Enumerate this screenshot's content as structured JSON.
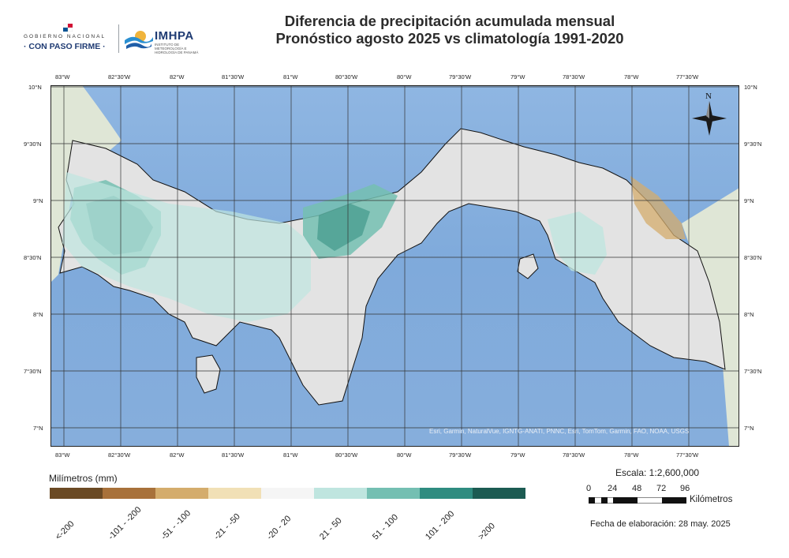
{
  "header": {
    "gov_small": "GOBIERNO NACIONAL",
    "gov_big": "· CON PASO FIRME ·",
    "imhpa_name": "IMHPA",
    "imhpa_sub": "INSTITUTO DE METEOROLOGÍA E HIDROLOGÍA DE PANAMÁ",
    "title_line1": "Diferencia de precipitación acumulada mensual",
    "title_line2": "Pronóstico agosto 2025 vs climatología 1991-2020"
  },
  "map": {
    "lon_ticks": [
      "83°W",
      "82°30'W",
      "82°W",
      "81°30'W",
      "81°W",
      "80°30'W",
      "80°W",
      "79°30'W",
      "79°W",
      "78°30'W",
      "78°W",
      "77°30'W"
    ],
    "lat_ticks": [
      "10°N",
      "9°30'N",
      "9°N",
      "8°30'N",
      "8°N",
      "7°30'N",
      "7°N"
    ],
    "north_label": "N",
    "attribution": "Esri, Garmin, NaturalVue, IGNTG-ANATI, PNNC, Esri, TomTom, Garmin, FAO, NOAA, USGS",
    "colors": {
      "sea": "#86aedc",
      "land": "#e3e3e3",
      "border": "#111111"
    }
  },
  "legend": {
    "title": "Milímetros (mm)",
    "items": [
      {
        "label": "<-200",
        "color": "#6b4a24"
      },
      {
        "label": "-101 - -200",
        "color": "#a8713a"
      },
      {
        "label": "-51 - -100",
        "color": "#d4ac6c"
      },
      {
        "label": "-21 - -50",
        "color": "#f1e0b6"
      },
      {
        "label": "-20 - 20",
        "color": "#f5f5f5"
      },
      {
        "label": "21 - 50",
        "color": "#bfe5df"
      },
      {
        "label": "51 - 100",
        "color": "#74bfb2"
      },
      {
        "label": "101 - 200",
        "color": "#2f8c80"
      },
      {
        "label": ">200",
        "color": "#1c5b52"
      }
    ]
  },
  "scale": {
    "text": "Escala: 1:2,600,000",
    "labels": [
      "0",
      "24",
      "48",
      "72",
      "96"
    ],
    "unit": "Kilómetros"
  },
  "footer": {
    "date": "Fecha de elaboración: 28 may. 2025"
  }
}
